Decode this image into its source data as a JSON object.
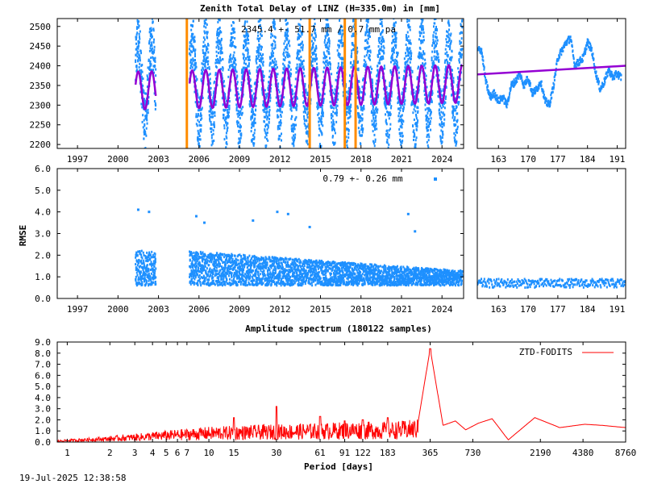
{
  "footer": {
    "timestamp": "19-Jul-2025 12:38:58"
  },
  "colors": {
    "ztd": "#1e90ff",
    "trend": "#9400d3",
    "event": "#ff8c00",
    "spectrum": "#ff0000",
    "frame": "#000000"
  },
  "chart_data": [
    {
      "id": "ztd",
      "type": "scatter",
      "title": "Zenith Total Delay of LINZ (H=335.0m) in [mm]",
      "annotation": "2345.4 +-  51.7 mm /  0.7 mm pa",
      "xlabel": "",
      "ylabel": "",
      "xlim": [
        1995.5,
        2025.6
      ],
      "ylim": [
        2190,
        2520
      ],
      "xticks": [
        1997,
        2000,
        2003,
        2006,
        2009,
        2012,
        2015,
        2018,
        2021,
        2024
      ],
      "yticks": [
        2200,
        2250,
        2300,
        2350,
        2400,
        2450,
        2500
      ],
      "segments": [
        [
          2001.3,
          2002.8
        ],
        [
          2005.3,
          2025.5
        ]
      ],
      "model": {
        "mean": 2345.4,
        "amplitude": 51.7,
        "trend_per_year": 0.7,
        "typical_low": 2230,
        "typical_high": 2490
      },
      "fit_amplitude": 48,
      "event_lines": [
        2005.1,
        2014.2,
        2016.8,
        2017.6
      ],
      "grid": false
    },
    {
      "id": "ztd-recent",
      "type": "scatter",
      "title": "",
      "xlabel": "",
      "ylabel": "",
      "xlim": [
        158,
        193
      ],
      "ylim": [
        2190,
        2520
      ],
      "xticks": [
        163,
        170,
        177,
        184,
        191
      ],
      "trend": [
        [
          158,
          2378
        ],
        [
          193,
          2400
        ]
      ],
      "values": [
        [
          158,
          2440
        ],
        [
          159,
          2440
        ],
        [
          160,
          2360
        ],
        [
          161,
          2320
        ],
        [
          162,
          2330
        ],
        [
          163,
          2310
        ],
        [
          164,
          2320
        ],
        [
          165,
          2300
        ],
        [
          166,
          2350
        ],
        [
          167,
          2360
        ],
        [
          168,
          2380
        ],
        [
          169,
          2350
        ],
        [
          170,
          2370
        ],
        [
          171,
          2330
        ],
        [
          172,
          2340
        ],
        [
          173,
          2360
        ],
        [
          174,
          2310
        ],
        [
          175,
          2300
        ],
        [
          176,
          2350
        ],
        [
          177,
          2420
        ],
        [
          178,
          2440
        ],
        [
          179,
          2460
        ],
        [
          180,
          2470
        ],
        [
          181,
          2400
        ],
        [
          182,
          2410
        ],
        [
          183,
          2420
        ],
        [
          184,
          2460
        ],
        [
          185,
          2440
        ],
        [
          186,
          2380
        ],
        [
          187,
          2340
        ],
        [
          188,
          2360
        ],
        [
          189,
          2390
        ],
        [
          190,
          2370
        ],
        [
          191,
          2380
        ],
        [
          192,
          2370
        ]
      ]
    },
    {
      "id": "rmse",
      "type": "scatter",
      "title": "",
      "annotation": "0.79 +-  0.26 mm",
      "xlabel": "",
      "ylabel": "RMSE",
      "xlim": [
        1995.5,
        2025.6
      ],
      "ylim": [
        0,
        6
      ],
      "xticks": [
        1997,
        2000,
        2003,
        2006,
        2009,
        2012,
        2015,
        2018,
        2021,
        2024
      ],
      "yticks": [
        "0.0",
        "1.0",
        "2.0",
        "3.0",
        "4.0",
        "5.0",
        "6.0"
      ],
      "segments": [
        [
          2001.3,
          2002.8
        ],
        [
          2005.3,
          2025.5
        ]
      ],
      "typical_range": [
        0.6,
        2.2
      ],
      "outliers": [
        [
          2001.5,
          4.1
        ],
        [
          2002.3,
          4.0
        ],
        [
          2005.8,
          3.8
        ],
        [
          2006.4,
          3.5
        ],
        [
          2010.0,
          3.6
        ],
        [
          2011.8,
          4.0
        ],
        [
          2012.6,
          3.9
        ],
        [
          2014.2,
          3.3
        ],
        [
          2021.5,
          3.9
        ],
        [
          2022.0,
          3.1
        ]
      ]
    },
    {
      "id": "rmse-recent",
      "type": "scatter",
      "title": "",
      "xlabel": "",
      "ylabel": "",
      "xlim": [
        158,
        193
      ],
      "ylim": [
        0,
        6
      ],
      "xticks": [
        163,
        170,
        177,
        184,
        191
      ],
      "typical_range": [
        0.5,
        0.9
      ]
    },
    {
      "id": "spectrum",
      "type": "line",
      "title": "Amplitude spectrum (180122 samples)",
      "xlabel": "Period [days]",
      "ylabel": "",
      "xscale": "log",
      "xlim": [
        0.85,
        8760
      ],
      "ylim": [
        0,
        9
      ],
      "xticks": [
        1,
        2,
        3,
        4,
        5,
        6,
        7,
        10,
        15,
        30,
        61,
        91,
        122,
        183,
        365,
        730,
        2190,
        4380,
        8760
      ],
      "yticks": [
        "0.0",
        "1.0",
        "2.0",
        "3.0",
        "4.0",
        "5.0",
        "6.0",
        "7.0",
        "8.0",
        "9.0"
      ],
      "legend": {
        "position": "top-right"
      },
      "series": [
        {
          "name": "ZTD-FODITS",
          "peaks": [
            [
              365,
              8.4
            ],
            [
              380,
              5.8
            ],
            [
              350,
              4.5
            ],
            [
              183,
              2.2
            ],
            [
              30,
              3.2
            ],
            [
              15,
              2.2
            ],
            [
              122,
              2.0
            ],
            [
              91,
              1.9
            ],
            [
              61,
              2.3
            ]
          ],
          "values": [
            [
              0.85,
              0.15
            ],
            [
              2,
              0.45
            ],
            [
              5,
              0.9
            ],
            [
              10,
              1.2
            ],
            [
              30,
              1.4
            ],
            [
              60,
              1.5
            ],
            [
              100,
              1.6
            ],
            [
              200,
              1.6
            ],
            [
              300,
              1.8
            ],
            [
              365,
              8.4
            ],
            [
              450,
              1.5
            ],
            [
              550,
              1.9
            ],
            [
              650,
              1.1
            ],
            [
              800,
              1.7
            ],
            [
              1000,
              2.1
            ],
            [
              1300,
              0.2
            ],
            [
              2000,
              2.2
            ],
            [
              3000,
              1.3
            ],
            [
              4500,
              1.6
            ],
            [
              6000,
              1.5
            ],
            [
              8760,
              1.3
            ]
          ]
        }
      ]
    }
  ]
}
